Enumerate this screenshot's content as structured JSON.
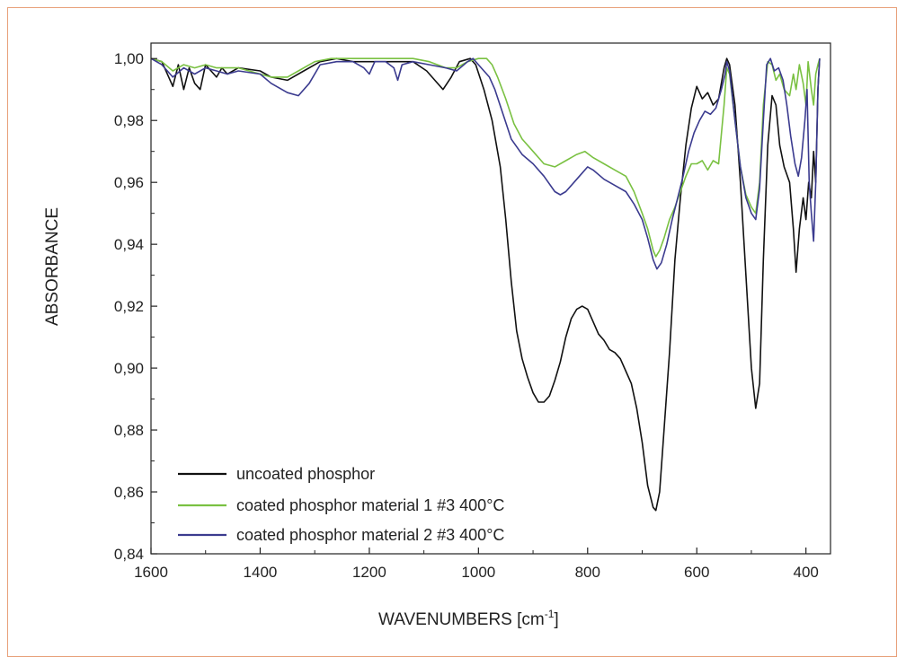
{
  "chart_data": {
    "type": "line",
    "title": "",
    "xlabel": "WAVENUMBERS [cm",
    "xlabel_sup": "-1",
    "xlabel_end": "]",
    "ylabel": "ABSORBANCE",
    "xlim": [
      1600,
      355
    ],
    "ylim": [
      0.84,
      1.005
    ],
    "x_reversed": true,
    "grid": false,
    "legend_position": "bottom-left",
    "x_ticks": [
      {
        "value": 1600,
        "label": "1600"
      },
      {
        "value": 1400,
        "label": "1400"
      },
      {
        "value": 1200,
        "label": "1200"
      },
      {
        "value": 1000,
        "label": "1000"
      },
      {
        "value": 800,
        "label": "800"
      },
      {
        "value": 600,
        "label": "600"
      },
      {
        "value": 400,
        "label": "400"
      }
    ],
    "y_ticks": [
      {
        "value": 0.84,
        "label": "0,84"
      },
      {
        "value": 0.86,
        "label": "0,86"
      },
      {
        "value": 0.88,
        "label": "0,88"
      },
      {
        "value": 0.9,
        "label": "0,90"
      },
      {
        "value": 0.92,
        "label": "0,92"
      },
      {
        "value": 0.94,
        "label": "0,94"
      },
      {
        "value": 0.96,
        "label": "0,96"
      },
      {
        "value": 0.98,
        "label": "0,98"
      },
      {
        "value": 1.0,
        "label": "1,00"
      }
    ],
    "series": [
      {
        "name": "uncoated phosphor",
        "color": "#111111",
        "points": [
          [
            1600,
            1.0
          ],
          [
            1580,
            0.999
          ],
          [
            1560,
            0.991
          ],
          [
            1550,
            0.998
          ],
          [
            1540,
            0.99
          ],
          [
            1530,
            0.997
          ],
          [
            1520,
            0.992
          ],
          [
            1510,
            0.99
          ],
          [
            1500,
            0.998
          ],
          [
            1490,
            0.996
          ],
          [
            1480,
            0.994
          ],
          [
            1470,
            0.997
          ],
          [
            1460,
            0.995
          ],
          [
            1440,
            0.997
          ],
          [
            1400,
            0.996
          ],
          [
            1380,
            0.994
          ],
          [
            1350,
            0.993
          ],
          [
            1320,
            0.996
          ],
          [
            1290,
            0.999
          ],
          [
            1260,
            1.0
          ],
          [
            1230,
            0.999
          ],
          [
            1200,
            0.999
          ],
          [
            1180,
            0.999
          ],
          [
            1150,
            0.999
          ],
          [
            1120,
            0.999
          ],
          [
            1095,
            0.996
          ],
          [
            1080,
            0.993
          ],
          [
            1065,
            0.99
          ],
          [
            1050,
            0.994
          ],
          [
            1035,
            0.999
          ],
          [
            1015,
            1.0
          ],
          [
            1005,
            0.998
          ],
          [
            990,
            0.99
          ],
          [
            975,
            0.98
          ],
          [
            960,
            0.965
          ],
          [
            950,
            0.948
          ],
          [
            940,
            0.928
          ],
          [
            930,
            0.912
          ],
          [
            920,
            0.903
          ],
          [
            910,
            0.897
          ],
          [
            900,
            0.892
          ],
          [
            890,
            0.889
          ],
          [
            880,
            0.889
          ],
          [
            870,
            0.891
          ],
          [
            860,
            0.896
          ],
          [
            850,
            0.902
          ],
          [
            840,
            0.91
          ],
          [
            830,
            0.916
          ],
          [
            820,
            0.919
          ],
          [
            810,
            0.92
          ],
          [
            800,
            0.919
          ],
          [
            790,
            0.915
          ],
          [
            780,
            0.911
          ],
          [
            770,
            0.909
          ],
          [
            760,
            0.906
          ],
          [
            750,
            0.905
          ],
          [
            740,
            0.903
          ],
          [
            730,
            0.899
          ],
          [
            720,
            0.895
          ],
          [
            710,
            0.887
          ],
          [
            700,
            0.876
          ],
          [
            690,
            0.862
          ],
          [
            680,
            0.855
          ],
          [
            675,
            0.854
          ],
          [
            668,
            0.86
          ],
          [
            660,
            0.88
          ],
          [
            650,
            0.905
          ],
          [
            640,
            0.935
          ],
          [
            630,
            0.955
          ],
          [
            620,
            0.972
          ],
          [
            610,
            0.984
          ],
          [
            600,
            0.991
          ],
          [
            590,
            0.987
          ],
          [
            580,
            0.989
          ],
          [
            570,
            0.985
          ],
          [
            560,
            0.987
          ],
          [
            550,
            0.997
          ],
          [
            545,
            1.0
          ],
          [
            540,
            0.998
          ],
          [
            530,
            0.985
          ],
          [
            520,
            0.96
          ],
          [
            510,
            0.93
          ],
          [
            500,
            0.9
          ],
          [
            492,
            0.887
          ],
          [
            485,
            0.895
          ],
          [
            478,
            0.935
          ],
          [
            470,
            0.972
          ],
          [
            462,
            0.988
          ],
          [
            455,
            0.985
          ],
          [
            448,
            0.972
          ],
          [
            440,
            0.965
          ],
          [
            430,
            0.96
          ],
          [
            423,
            0.945
          ],
          [
            418,
            0.931
          ],
          [
            412,
            0.945
          ],
          [
            405,
            0.955
          ],
          [
            400,
            0.948
          ],
          [
            395,
            0.96
          ],
          [
            390,
            0.955
          ],
          [
            386,
            0.97
          ],
          [
            382,
            0.96
          ],
          [
            378,
            0.99
          ],
          [
            375,
            1.0
          ]
        ]
      },
      {
        "name": "coated phosphor material 1 #3 400°C",
        "color": "#7ac142",
        "points": [
          [
            1600,
            1.0
          ],
          [
            1580,
            0.999
          ],
          [
            1560,
            0.996
          ],
          [
            1540,
            0.998
          ],
          [
            1520,
            0.997
          ],
          [
            1500,
            0.998
          ],
          [
            1480,
            0.997
          ],
          [
            1460,
            0.997
          ],
          [
            1440,
            0.997
          ],
          [
            1400,
            0.995
          ],
          [
            1380,
            0.994
          ],
          [
            1350,
            0.994
          ],
          [
            1330,
            0.996
          ],
          [
            1300,
            0.999
          ],
          [
            1270,
            1.0
          ],
          [
            1240,
            1.0
          ],
          [
            1210,
            1.0
          ],
          [
            1180,
            1.0
          ],
          [
            1150,
            1.0
          ],
          [
            1120,
            1.0
          ],
          [
            1090,
            0.999
          ],
          [
            1060,
            0.997
          ],
          [
            1040,
            0.997
          ],
          [
            1020,
            0.999
          ],
          [
            1000,
            1.0
          ],
          [
            985,
            1.0
          ],
          [
            975,
            0.998
          ],
          [
            965,
            0.994
          ],
          [
            950,
            0.987
          ],
          [
            935,
            0.979
          ],
          [
            920,
            0.974
          ],
          [
            900,
            0.97
          ],
          [
            880,
            0.966
          ],
          [
            860,
            0.965
          ],
          [
            840,
            0.967
          ],
          [
            820,
            0.969
          ],
          [
            805,
            0.97
          ],
          [
            790,
            0.968
          ],
          [
            770,
            0.966
          ],
          [
            750,
            0.964
          ],
          [
            730,
            0.962
          ],
          [
            715,
            0.957
          ],
          [
            700,
            0.95
          ],
          [
            690,
            0.945
          ],
          [
            680,
            0.938
          ],
          [
            675,
            0.936
          ],
          [
            668,
            0.938
          ],
          [
            660,
            0.942
          ],
          [
            650,
            0.948
          ],
          [
            640,
            0.952
          ],
          [
            630,
            0.957
          ],
          [
            620,
            0.962
          ],
          [
            610,
            0.966
          ],
          [
            600,
            0.966
          ],
          [
            590,
            0.967
          ],
          [
            580,
            0.964
          ],
          [
            570,
            0.967
          ],
          [
            560,
            0.966
          ],
          [
            550,
            0.985
          ],
          [
            545,
            0.997
          ],
          [
            540,
            0.995
          ],
          [
            530,
            0.98
          ],
          [
            520,
            0.965
          ],
          [
            510,
            0.956
          ],
          [
            500,
            0.952
          ],
          [
            492,
            0.95
          ],
          [
            485,
            0.96
          ],
          [
            478,
            0.985
          ],
          [
            470,
            0.999
          ],
          [
            462,
            0.998
          ],
          [
            455,
            0.993
          ],
          [
            448,
            0.995
          ],
          [
            440,
            0.99
          ],
          [
            430,
            0.988
          ],
          [
            423,
            0.995
          ],
          [
            418,
            0.99
          ],
          [
            412,
            0.998
          ],
          [
            405,
            0.992
          ],
          [
            400,
            0.985
          ],
          [
            396,
            0.999
          ],
          [
            390,
            0.99
          ],
          [
            386,
            0.985
          ],
          [
            382,
            0.995
          ],
          [
            378,
            0.998
          ],
          [
            375,
            1.0
          ]
        ]
      },
      {
        "name": "coated phosphor material 2 #3 400°C",
        "color": "#3b3b8f",
        "points": [
          [
            1600,
            1.0
          ],
          [
            1580,
            0.998
          ],
          [
            1560,
            0.994
          ],
          [
            1540,
            0.997
          ],
          [
            1520,
            0.995
          ],
          [
            1500,
            0.997
          ],
          [
            1480,
            0.996
          ],
          [
            1460,
            0.995
          ],
          [
            1440,
            0.996
          ],
          [
            1400,
            0.995
          ],
          [
            1380,
            0.992
          ],
          [
            1350,
            0.989
          ],
          [
            1330,
            0.988
          ],
          [
            1310,
            0.992
          ],
          [
            1290,
            0.998
          ],
          [
            1260,
            0.999
          ],
          [
            1230,
            0.999
          ],
          [
            1210,
            0.997
          ],
          [
            1200,
            0.995
          ],
          [
            1190,
            0.999
          ],
          [
            1170,
            0.999
          ],
          [
            1155,
            0.997
          ],
          [
            1148,
            0.993
          ],
          [
            1140,
            0.998
          ],
          [
            1120,
            0.999
          ],
          [
            1090,
            0.998
          ],
          [
            1060,
            0.997
          ],
          [
            1040,
            0.996
          ],
          [
            1020,
            0.999
          ],
          [
            1010,
            1.0
          ],
          [
            1000,
            0.998
          ],
          [
            990,
            0.996
          ],
          [
            980,
            0.994
          ],
          [
            970,
            0.99
          ],
          [
            955,
            0.982
          ],
          [
            940,
            0.974
          ],
          [
            920,
            0.969
          ],
          [
            900,
            0.966
          ],
          [
            880,
            0.962
          ],
          [
            860,
            0.957
          ],
          [
            850,
            0.956
          ],
          [
            840,
            0.957
          ],
          [
            825,
            0.96
          ],
          [
            810,
            0.963
          ],
          [
            800,
            0.965
          ],
          [
            790,
            0.964
          ],
          [
            770,
            0.961
          ],
          [
            750,
            0.959
          ],
          [
            730,
            0.957
          ],
          [
            715,
            0.953
          ],
          [
            700,
            0.948
          ],
          [
            690,
            0.942
          ],
          [
            680,
            0.935
          ],
          [
            673,
            0.932
          ],
          [
            665,
            0.934
          ],
          [
            655,
            0.94
          ],
          [
            645,
            0.948
          ],
          [
            635,
            0.955
          ],
          [
            625,
            0.962
          ],
          [
            615,
            0.97
          ],
          [
            605,
            0.976
          ],
          [
            595,
            0.98
          ],
          [
            585,
            0.983
          ],
          [
            575,
            0.982
          ],
          [
            565,
            0.984
          ],
          [
            555,
            0.99
          ],
          [
            548,
            0.995
          ],
          [
            545,
            0.999
          ],
          [
            540,
            0.996
          ],
          [
            530,
            0.98
          ],
          [
            520,
            0.965
          ],
          [
            510,
            0.955
          ],
          [
            500,
            0.95
          ],
          [
            492,
            0.948
          ],
          [
            485,
            0.958
          ],
          [
            478,
            0.98
          ],
          [
            472,
            0.998
          ],
          [
            465,
            1.0
          ],
          [
            458,
            0.996
          ],
          [
            450,
            0.997
          ],
          [
            442,
            0.993
          ],
          [
            435,
            0.985
          ],
          [
            428,
            0.975
          ],
          [
            420,
            0.966
          ],
          [
            414,
            0.962
          ],
          [
            408,
            0.968
          ],
          [
            402,
            0.98
          ],
          [
            398,
            0.99
          ],
          [
            394,
            0.96
          ],
          [
            390,
            0.95
          ],
          [
            386,
            0.941
          ],
          [
            382,
            0.96
          ],
          [
            378,
            0.99
          ],
          [
            375,
            1.0
          ]
        ]
      }
    ]
  }
}
